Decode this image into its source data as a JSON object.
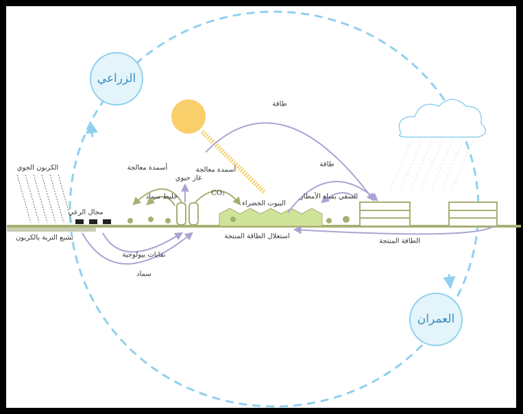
{
  "zones": [
    "الزراعي",
    "العمران"
  ],
  "labels": {
    "energy_top": "طاقة",
    "energy_right": "طاقة",
    "atmospheric_carbon": "الكربون الجوي",
    "fertilizer_left": "أسمدة معالجة",
    "fertilizer_middle": "أسمدة معالجة",
    "biogas": "غاز حيوي",
    "compost_mix": "خليط سماد",
    "co2": "CO₂",
    "grazing": "مجال الرعي",
    "greenhouses": "البيوت الخضراء",
    "rain_irrigation": "السقي بمياه الأمطار",
    "soil_carbon": "تشبع التربة بالكربون",
    "bio_waste": "نفايات بيولوجية",
    "manure": "سماد",
    "energy_use": "استغلال الطاقة المنتجة",
    "produced_energy": "الطاقة المنتجة"
  }
}
